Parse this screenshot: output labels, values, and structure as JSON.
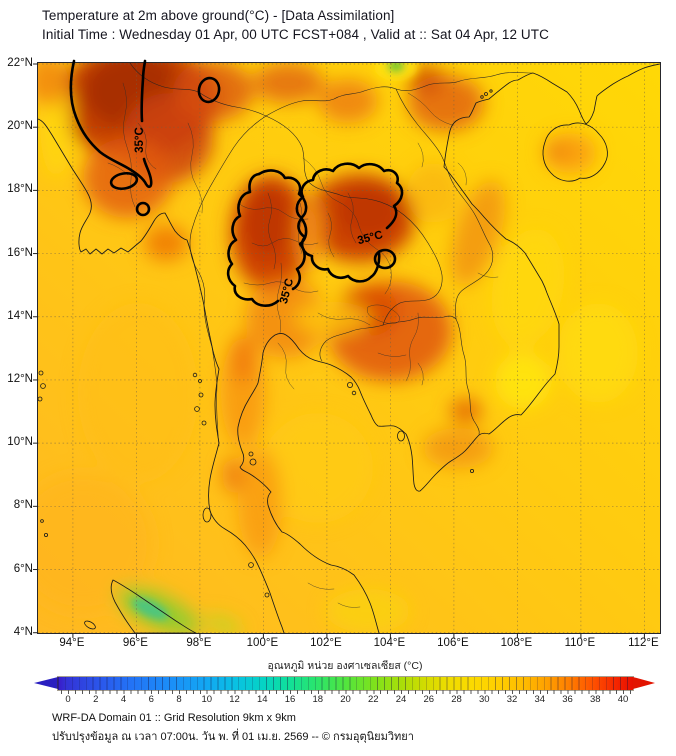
{
  "title": {
    "line1": "Temperature at 2m above ground(°C) - [Data Assimilation]",
    "line2": "Initial Time : Wednesday 01 Apr, 00 UTC FCST+084 , Valid at :: Sat 04 Apr, 12 UTC"
  },
  "map": {
    "y_ticks": [
      "22°N",
      "20°N",
      "18°N",
      "16°N",
      "14°N",
      "12°N",
      "10°N",
      "8°N",
      "6°N",
      "4°N"
    ],
    "x_ticks": [
      "94°E",
      "96°E",
      "98°E",
      "100°E",
      "102°E",
      "104°E",
      "106°E",
      "108°E",
      "110°E",
      "112°E"
    ],
    "contour_labels": [
      {
        "text": "35°C",
        "region": "central-myanmar"
      },
      {
        "text": "35°C",
        "region": "northern-thailand"
      },
      {
        "text": "35°C",
        "region": "northeast-thailand"
      }
    ]
  },
  "colorbar": {
    "title": "อุณหภูมิ หน่วย องศาเซลเซียส (°C)",
    "ticks": [
      "0",
      "2",
      "4",
      "6",
      "8",
      "10",
      "12",
      "14",
      "16",
      "18",
      "20",
      "22",
      "24",
      "26",
      "28",
      "30",
      "32",
      "34",
      "36",
      "38",
      "40"
    ],
    "left_arrow_color": "#2A1FC0",
    "right_arrow_color": "#E21400"
  },
  "footer": {
    "line1": "WRF-DA Domain 01 :: Grid Resolution 9km x 9km",
    "line2": "ปรับปรุงข้อมูล ณ เวลา 07:00น. วัน พ. ที่ 01 เม.ย. 2569 -- © กรมอุตุนิยมวิทยา"
  },
  "palette": {
    "sea_yellow": "#FFD106",
    "sea_orange": "#FFB922",
    "land_orange": "#F08012",
    "hot_red": "#CC3C04",
    "dark_red_core": "#A52F05",
    "cool_green": "#90CC2E",
    "contour_black": "#000000"
  },
  "chart_data": {
    "type": "heatmap",
    "title": "Temperature at 2m above ground(°C) - [Data Assimilation]",
    "subtitle": "Initial Time : Wednesday 01 Apr, 00 UTC FCST+084 , Valid at :: Sat 04 Apr, 12 UTC",
    "x_axis": {
      "label": "longitude",
      "tick_labels": [
        "94°E",
        "96°E",
        "98°E",
        "100°E",
        "102°E",
        "104°E",
        "106°E",
        "108°E",
        "110°E",
        "112°E"
      ],
      "range_deg_e": [
        92.9,
        112.5
      ]
    },
    "y_axis": {
      "label": "latitude",
      "tick_labels": [
        "4°N",
        "6°N",
        "8°N",
        "10°N",
        "12°N",
        "14°N",
        "16°N",
        "18°N",
        "20°N",
        "22°N"
      ],
      "range_deg_n": [
        4.0,
        22.1
      ]
    },
    "colorbar": {
      "label": "อุณหภูมิ หน่วย องศาเซลเซียส (°C)",
      "tick_values": [
        0,
        2,
        4,
        6,
        8,
        10,
        12,
        14,
        16,
        18,
        20,
        22,
        24,
        26,
        28,
        30,
        32,
        34,
        36,
        38,
        40
      ],
      "range_c": [
        0,
        40
      ],
      "style": "rainbow, 0.5°C segments, arrowed ends"
    },
    "contour": {
      "level_c": 35,
      "label": "35°C",
      "enclosed_regions": [
        "central Myanmar",
        "northern Thailand",
        "northeastern Thailand (Isan)"
      ]
    },
    "field_estimates_c": [
      {
        "area": "Central Myanmar (inside 35°C contour)",
        "value": 36.5
      },
      {
        "area": "Northern Thailand (inside 35°C contour)",
        "value": 35.5
      },
      {
        "area": "Northeast Thailand / Isan (inside 35°C contour)",
        "value": 35.5
      },
      {
        "area": "Cambodia / lower Mekong valley",
        "value": 34
      },
      {
        "area": "Central plain of Thailand",
        "value": 33
      },
      {
        "area": "Vietnam central coast strip",
        "value": 30
      },
      {
        "area": "Open sea (Gulf of Thailand / South China Sea)",
        "value": 29
      },
      {
        "area": "Northern Sumatra highlands (green spot)",
        "value": 23
      }
    ],
    "grid": true,
    "legend_position": "bottom-colorbar"
  }
}
